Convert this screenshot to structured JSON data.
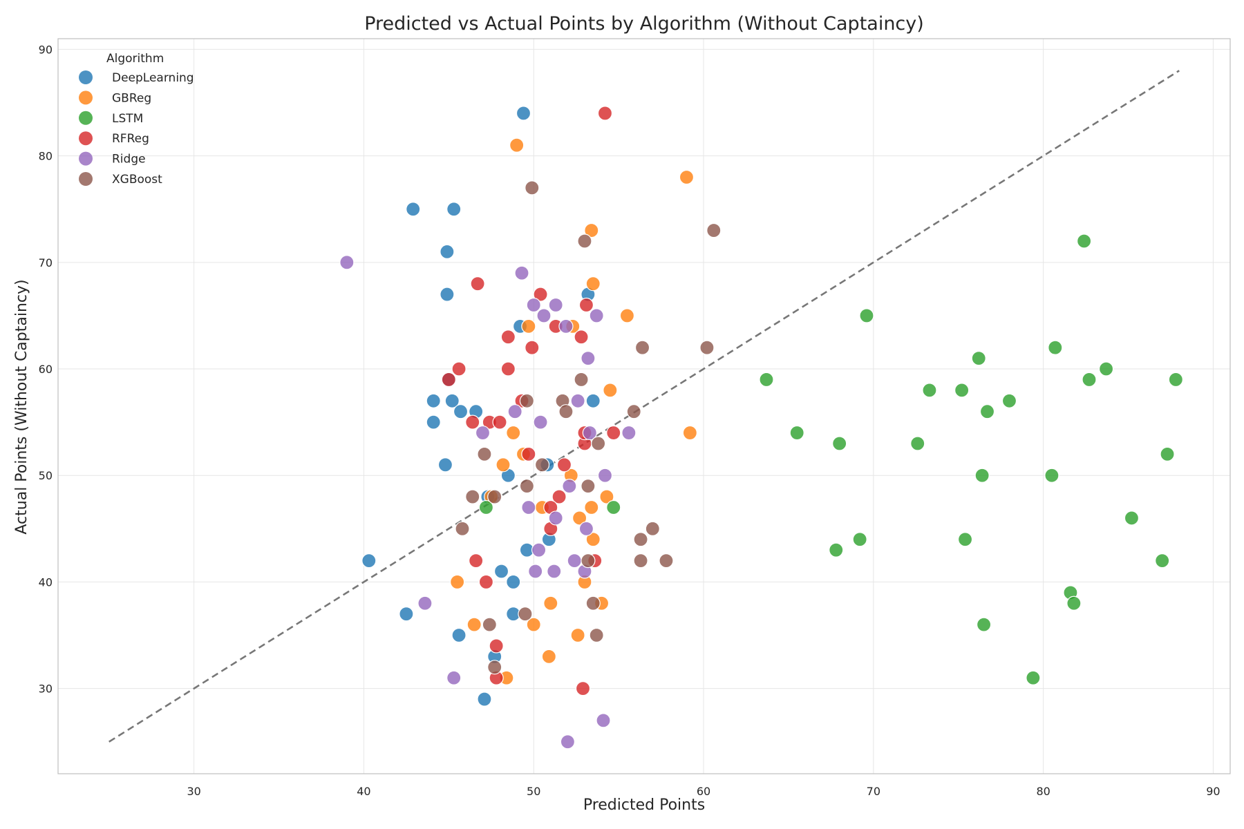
{
  "chart_data": {
    "type": "scatter",
    "title": "Predicted vs Actual Points by Algorithm (Without Captaincy)",
    "xlabel": "Predicted Points",
    "ylabel": "Actual Points (Without Captaincy)",
    "xlim": [
      22,
      91
    ],
    "ylim": [
      22,
      91
    ],
    "xticks": [
      30,
      40,
      50,
      60,
      70,
      80,
      90
    ],
    "yticks": [
      30,
      40,
      50,
      60,
      70,
      80,
      90
    ],
    "grid": true,
    "legend": {
      "title": "Algorithm",
      "placement": "top-left"
    },
    "reference_line": {
      "style": "dashed",
      "color": "#777777",
      "from": [
        25,
        25
      ],
      "to": [
        88,
        88
      ]
    },
    "series": [
      {
        "name": "DeepLearning",
        "color": "#1f77b4",
        "points": [
          [
            49.4,
            84
          ],
          [
            42.9,
            75
          ],
          [
            45.3,
            75
          ],
          [
            44.9,
            71
          ],
          [
            44.9,
            67
          ],
          [
            53.2,
            67
          ],
          [
            49.2,
            64
          ],
          [
            45.0,
            59
          ],
          [
            44.1,
            57
          ],
          [
            45.2,
            57
          ],
          [
            53.5,
            57
          ],
          [
            45.7,
            56
          ],
          [
            46.6,
            56
          ],
          [
            44.1,
            55
          ],
          [
            44.8,
            51
          ],
          [
            50.8,
            51
          ],
          [
            48.5,
            50
          ],
          [
            47.3,
            48
          ],
          [
            49.6,
            43
          ],
          [
            50.9,
            44
          ],
          [
            40.3,
            42
          ],
          [
            48.1,
            41
          ],
          [
            48.8,
            40
          ],
          [
            42.5,
            37
          ],
          [
            48.8,
            37
          ],
          [
            45.6,
            35
          ],
          [
            47.7,
            33
          ],
          [
            47.1,
            29
          ]
        ]
      },
      {
        "name": "GBReg",
        "color": "#ff7f0e",
        "points": [
          [
            49.0,
            81
          ],
          [
            59.0,
            78
          ],
          [
            53.4,
            73
          ],
          [
            53.5,
            68
          ],
          [
            49.7,
            64
          ],
          [
            52.3,
            64
          ],
          [
            55.5,
            65
          ],
          [
            54.5,
            58
          ],
          [
            59.2,
            54
          ],
          [
            48.8,
            54
          ],
          [
            49.4,
            52
          ],
          [
            48.2,
            51
          ],
          [
            52.2,
            50
          ],
          [
            47.5,
            48
          ],
          [
            54.3,
            48
          ],
          [
            50.5,
            47
          ],
          [
            53.4,
            47
          ],
          [
            52.7,
            46
          ],
          [
            53.5,
            44
          ],
          [
            45.5,
            40
          ],
          [
            53.0,
            40
          ],
          [
            51.0,
            38
          ],
          [
            54.0,
            38
          ],
          [
            46.5,
            36
          ],
          [
            50.0,
            36
          ],
          [
            52.6,
            35
          ],
          [
            50.9,
            33
          ],
          [
            48.4,
            31
          ]
        ]
      },
      {
        "name": "LSTM",
        "color": "#2ca02c",
        "points": [
          [
            82.4,
            72
          ],
          [
            69.6,
            65
          ],
          [
            80.7,
            62
          ],
          [
            76.2,
            61
          ],
          [
            63.7,
            59
          ],
          [
            73.3,
            58
          ],
          [
            75.2,
            58
          ],
          [
            78.0,
            57
          ],
          [
            76.7,
            56
          ],
          [
            82.7,
            59
          ],
          [
            83.7,
            60
          ],
          [
            87.8,
            59
          ],
          [
            65.5,
            54
          ],
          [
            68.0,
            53
          ],
          [
            72.6,
            53
          ],
          [
            87.3,
            52
          ],
          [
            76.4,
            50
          ],
          [
            80.5,
            50
          ],
          [
            47.2,
            47
          ],
          [
            54.7,
            47
          ],
          [
            85.2,
            46
          ],
          [
            67.8,
            43
          ],
          [
            69.2,
            44
          ],
          [
            75.4,
            44
          ],
          [
            87.0,
            42
          ],
          [
            81.6,
            39
          ],
          [
            81.8,
            38
          ],
          [
            76.5,
            36
          ],
          [
            79.4,
            31
          ]
        ]
      },
      {
        "name": "RFReg",
        "color": "#d62728",
        "points": [
          [
            54.2,
            84
          ],
          [
            46.7,
            68
          ],
          [
            50.4,
            67
          ],
          [
            53.1,
            66
          ],
          [
            51.3,
            64
          ],
          [
            52.8,
            63
          ],
          [
            48.5,
            63
          ],
          [
            49.9,
            62
          ],
          [
            48.5,
            60
          ],
          [
            45.6,
            60
          ],
          [
            45.0,
            59
          ],
          [
            49.3,
            57
          ],
          [
            46.4,
            55
          ],
          [
            47.4,
            55
          ],
          [
            48.0,
            55
          ],
          [
            53.0,
            53
          ],
          [
            53.0,
            54
          ],
          [
            54.7,
            54
          ],
          [
            49.7,
            52
          ],
          [
            51.8,
            51
          ],
          [
            51.5,
            48
          ],
          [
            51.0,
            47
          ],
          [
            51.0,
            45
          ],
          [
            53.6,
            42
          ],
          [
            46.6,
            42
          ],
          [
            47.2,
            40
          ],
          [
            47.8,
            34
          ],
          [
            47.8,
            31
          ],
          [
            52.9,
            30
          ]
        ]
      },
      {
        "name": "Ridge",
        "color": "#9467bd",
        "points": [
          [
            39.0,
            70
          ],
          [
            49.3,
            69
          ],
          [
            50.0,
            66
          ],
          [
            51.3,
            66
          ],
          [
            50.6,
            65
          ],
          [
            51.9,
            64
          ],
          [
            53.7,
            65
          ],
          [
            53.2,
            61
          ],
          [
            52.6,
            57
          ],
          [
            48.9,
            56
          ],
          [
            50.4,
            55
          ],
          [
            47.0,
            54
          ],
          [
            53.3,
            54
          ],
          [
            55.6,
            54
          ],
          [
            54.2,
            50
          ],
          [
            52.1,
            49
          ],
          [
            49.7,
            47
          ],
          [
            51.3,
            46
          ],
          [
            53.1,
            45
          ],
          [
            50.3,
            43
          ],
          [
            52.4,
            42
          ],
          [
            50.1,
            41
          ],
          [
            51.2,
            41
          ],
          [
            53.0,
            41
          ],
          [
            43.6,
            38
          ],
          [
            45.3,
            31
          ],
          [
            54.1,
            27
          ],
          [
            52.0,
            25
          ]
        ]
      },
      {
        "name": "XGBoost",
        "color": "#8c564b",
        "points": [
          [
            49.9,
            77
          ],
          [
            60.6,
            73
          ],
          [
            53.0,
            72
          ],
          [
            56.4,
            62
          ],
          [
            60.2,
            62
          ],
          [
            52.8,
            59
          ],
          [
            49.6,
            57
          ],
          [
            51.7,
            57
          ],
          [
            51.9,
            56
          ],
          [
            55.9,
            56
          ],
          [
            53.8,
            53
          ],
          [
            47.1,
            52
          ],
          [
            50.5,
            51
          ],
          [
            49.6,
            49
          ],
          [
            53.2,
            49
          ],
          [
            46.4,
            48
          ],
          [
            47.7,
            48
          ],
          [
            45.8,
            45
          ],
          [
            57.0,
            45
          ],
          [
            56.3,
            44
          ],
          [
            56.3,
            42
          ],
          [
            57.8,
            42
          ],
          [
            53.2,
            42
          ],
          [
            53.5,
            38
          ],
          [
            47.4,
            36
          ],
          [
            49.5,
            37
          ],
          [
            53.7,
            35
          ],
          [
            47.7,
            32
          ]
        ]
      }
    ]
  }
}
